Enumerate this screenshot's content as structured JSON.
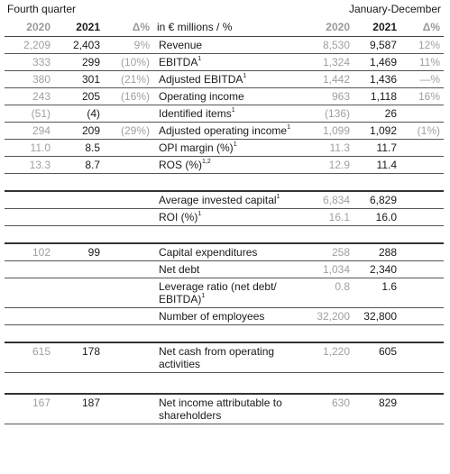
{
  "header": {
    "left_title": "Fourth quarter",
    "right_title": "January-December"
  },
  "columns": {
    "q_2020": "2020",
    "q_2021": "2021",
    "q_delta": "Δ%",
    "label": "in € millions / %",
    "y_2020": "2020",
    "y_2021": "2021",
    "y_delta": "Δ%"
  },
  "rows": [
    {
      "q2020": "2,209",
      "q2021": "2,403",
      "qd": "9%",
      "label": "Revenue",
      "sup": "",
      "y2020": "8,530",
      "y2021": "9,587",
      "yd": "12%"
    },
    {
      "q2020": "333",
      "q2021": "299",
      "qd": "(10%)",
      "label": "EBITDA",
      "sup": "1",
      "y2020": "1,324",
      "y2021": "1,469",
      "yd": "11%"
    },
    {
      "q2020": "380",
      "q2021": "301",
      "qd": "(21%)",
      "label": "Adjusted EBITDA",
      "sup": "1",
      "y2020": "1,442",
      "y2021": "1,436",
      "yd": "—%"
    },
    {
      "q2020": "243",
      "q2021": "205",
      "qd": "(16%)",
      "label": "Operating income",
      "sup": "",
      "y2020": "963",
      "y2021": "1,118",
      "yd": "16%"
    },
    {
      "q2020": "(51)",
      "q2021": "(4)",
      "qd": "",
      "label": "Identified items",
      "sup": "1",
      "y2020": "(136)",
      "y2021": "26",
      "yd": ""
    },
    {
      "q2020": "294",
      "q2021": "209",
      "qd": "(29%)",
      "label": "Adjusted operating income",
      "sup": "1",
      "y2020": "1,099",
      "y2021": "1,092",
      "yd": "(1%)"
    },
    {
      "q2020": "11.0",
      "q2021": "8.5",
      "qd": "",
      "label": "OPI margin (%)",
      "sup": "1",
      "y2020": "11.3",
      "y2021": "11.7",
      "yd": ""
    },
    {
      "q2020": "13.3",
      "q2021": "8.7",
      "qd": "",
      "label": "ROS (%)",
      "sup": "1,2",
      "y2020": "12.9",
      "y2021": "11.4",
      "yd": ""
    }
  ],
  "rows2": [
    {
      "q2020": "",
      "q2021": "",
      "qd": "",
      "label": "Average invested capital",
      "sup": "1",
      "y2020": "6,834",
      "y2021": "6,829",
      "yd": ""
    },
    {
      "q2020": "",
      "q2021": "",
      "qd": "",
      "label": "ROI (%)",
      "sup": "1",
      "y2020": "16.1",
      "y2021": "16.0",
      "yd": ""
    }
  ],
  "rows3": [
    {
      "q2020": "102",
      "q2021": "99",
      "qd": "",
      "label": "Capital expenditures",
      "sup": "",
      "y2020": "258",
      "y2021": "288",
      "yd": ""
    },
    {
      "q2020": "",
      "q2021": "",
      "qd": "",
      "label": "Net debt",
      "sup": "",
      "y2020": "1,034",
      "y2021": "2,340",
      "yd": ""
    },
    {
      "q2020": "",
      "q2021": "",
      "qd": "",
      "label": "Leverage ratio (net debt/ EBITDA)",
      "sup": "1",
      "y2020": "0.8",
      "y2021": "1.6",
      "yd": ""
    },
    {
      "q2020": "",
      "q2021": "",
      "qd": "",
      "label": "Number of employees",
      "sup": "",
      "y2020": "32,200",
      "y2021": "32,800",
      "yd": ""
    }
  ],
  "rows4": [
    {
      "q2020": "615",
      "q2021": "178",
      "qd": "",
      "label": "Net cash from operating activities",
      "sup": "",
      "y2020": "1,220",
      "y2021": "605",
      "yd": ""
    }
  ],
  "rows5": [
    {
      "q2020": "167",
      "q2021": "187",
      "qd": "",
      "label": "Net income attributable to shareholders",
      "sup": "",
      "y2020": "630",
      "y2021": "829",
      "yd": ""
    }
  ]
}
